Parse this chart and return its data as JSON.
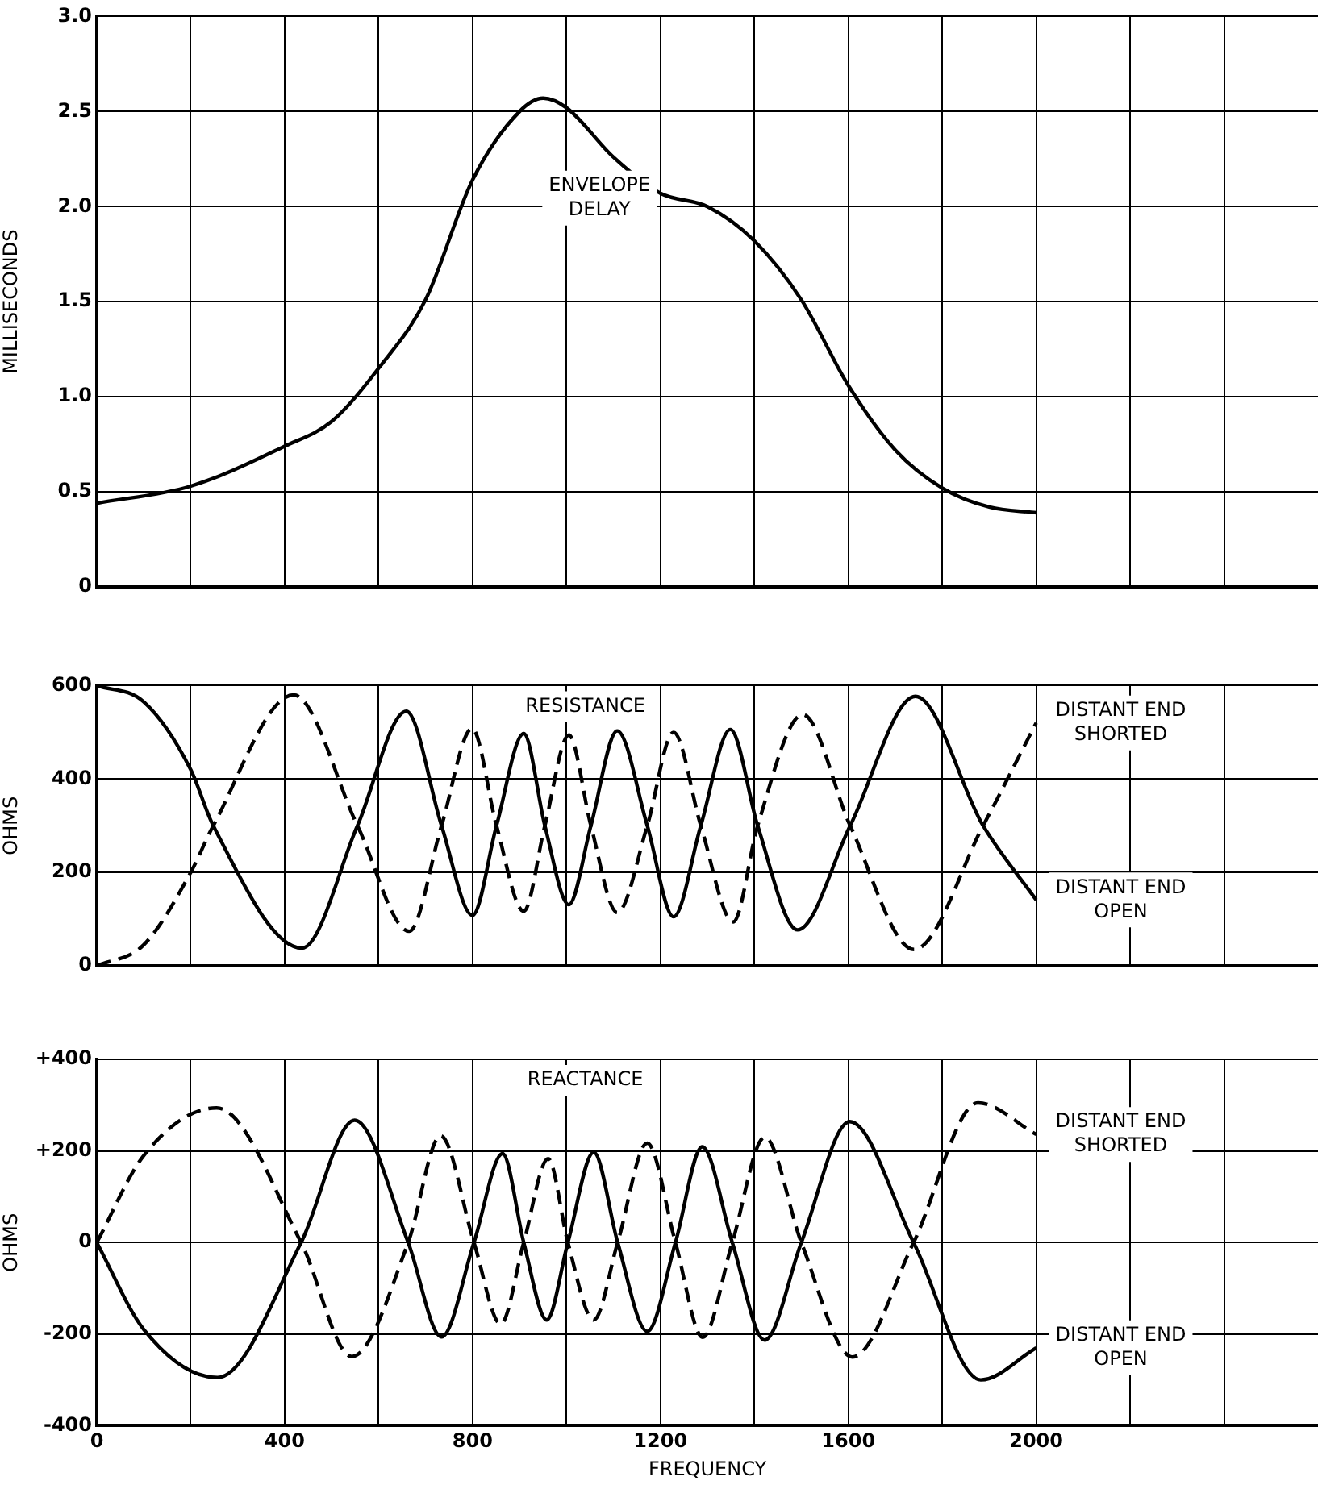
{
  "chart_data": [
    {
      "type": "line",
      "ylabel": "MILLISECONDS",
      "xlim": [
        0,
        2600
      ],
      "ylim": [
        0,
        3
      ],
      "xticks": [
        0,
        {
          "value": 200,
          "label": null
        },
        400,
        {
          "value": 600,
          "label": null
        },
        800,
        {
          "value": 1000,
          "label": null
        },
        1200,
        {
          "value": 1400,
          "label": null
        },
        1600,
        {
          "value": 1800,
          "label": null
        },
        2000,
        {
          "value": 2200,
          "label": null
        },
        {
          "value": 2400,
          "label": null
        }
      ],
      "yticks": [
        0,
        0.5,
        {
          "value": 1,
          "label": "1.0"
        },
        1.5,
        {
          "value": 2,
          "label": "2.0"
        },
        2.5,
        {
          "value": 3,
          "label": "3.0"
        }
      ],
      "grid": true,
      "tick_labels": "y",
      "marker": "none",
      "series": [
        {
          "name": "ENVELOPE DELAY",
          "color": "#000000",
          "line_style": "solid",
          "x": [
            0,
            200,
            400,
            500,
            600,
            700,
            800,
            900,
            950,
            1000,
            1100,
            1200,
            1300,
            1400,
            1500,
            1600,
            1700,
            1800,
            1900,
            2000
          ],
          "values": [
            0.44,
            0.53,
            0.74,
            0.87,
            1.15,
            1.51,
            2.14,
            2.5,
            2.57,
            2.52,
            2.26,
            2.07,
            2.0,
            1.82,
            1.51,
            1.06,
            0.72,
            0.52,
            0.42,
            0.39
          ]
        }
      ]
    },
    {
      "type": "line",
      "title": "RESISTANCE",
      "ylabel": "OHMS",
      "xlim": [
        0,
        2600
      ],
      "ylim": [
        0,
        600
      ],
      "xticks": [
        0,
        {
          "value": 200,
          "label": null
        },
        400,
        {
          "value": 600,
          "label": null
        },
        800,
        {
          "value": 1000,
          "label": null
        },
        1200,
        {
          "value": 1400,
          "label": null
        },
        1600,
        {
          "value": 1800,
          "label": null
        },
        2000,
        {
          "value": 2200,
          "label": null
        },
        {
          "value": 2400,
          "label": null
        }
      ],
      "yticks": [
        0,
        200,
        400,
        600
      ],
      "grid": true,
      "tick_labels": "y",
      "marker": "none",
      "series": [
        {
          "name": "DISTANT END SHORTED",
          "color": "#000000",
          "line_style": "dashed",
          "x": [
            0,
            100,
            200,
            248,
            419,
            555,
            665,
            734,
            799,
            851,
            909,
            954,
            1005,
            1052,
            1108,
            1172,
            1228,
            1286,
            1355,
            1407,
            1503,
            1604,
            1740,
            1887,
            2000
          ],
          "values": [
            0,
            45,
            200,
            300,
            580,
            300,
            74,
            300,
            508,
            300,
            117,
            300,
            494,
            300,
            114,
            300,
            500,
            300,
            94,
            300,
            538,
            300,
            35,
            300,
            520
          ]
        },
        {
          "name": "DISTANT END OPEN",
          "color": "#000000",
          "line_style": "solid",
          "x": [
            0,
            100,
            200,
            248,
            437,
            555,
            659,
            734,
            800,
            851,
            909,
            954,
            1005,
            1052,
            1108,
            1172,
            1228,
            1286,
            1349,
            1407,
            1492,
            1604,
            1743,
            1887,
            2000
          ],
          "values": [
            600,
            565,
            420,
            300,
            38,
            300,
            545,
            300,
            108,
            300,
            497,
            300,
            131,
            300,
            503,
            300,
            105,
            300,
            506,
            300,
            77,
            300,
            577,
            300,
            141
          ]
        }
      ]
    },
    {
      "type": "line",
      "title": "REACTANCE",
      "xlabel": "FREQUENCY",
      "ylabel": "OHMS",
      "xlim": [
        0,
        2600
      ],
      "ylim": [
        -400,
        400
      ],
      "xticks": [
        0,
        {
          "value": 200,
          "label": null
        },
        400,
        {
          "value": 600,
          "label": null
        },
        800,
        {
          "value": 1000,
          "label": null
        },
        1200,
        {
          "value": 1400,
          "label": null
        },
        1600,
        {
          "value": 1800,
          "label": null
        },
        2000,
        {
          "value": 2200,
          "label": null
        },
        {
          "value": 2400,
          "label": null
        }
      ],
      "yticks": [
        -400,
        -200,
        0,
        {
          "value": 200,
          "label": "+200"
        },
        {
          "value": 400,
          "label": "+400"
        }
      ],
      "grid": true,
      "marker": "none",
      "series": [
        {
          "name": "DISTANT END SHORTED",
          "color": "#000000",
          "line_style": "dashed",
          "x": [
            0,
            100,
            255,
            435,
            543,
            663,
            732,
            803,
            860,
            909,
            961,
            1003,
            1058,
            1109,
            1172,
            1232,
            1290,
            1353,
            1422,
            1500,
            1609,
            1739,
            1876,
            2000
          ],
          "values": [
            0,
            190,
            294,
            0,
            -249,
            0,
            233,
            0,
            -178,
            0,
            183,
            0,
            -169,
            0,
            217,
            0,
            -207,
            0,
            230,
            0,
            -250,
            0,
            305,
            236
          ]
        },
        {
          "name": "DISTANT END OPEN",
          "color": "#000000",
          "line_style": "solid",
          "x": [
            0,
            100,
            257,
            435,
            549,
            663,
            734,
            803,
            864,
            909,
            958,
            1003,
            1058,
            1109,
            1172,
            1232,
            1289,
            1353,
            1422,
            1500,
            1603,
            1739,
            1882,
            2000
          ],
          "values": [
            0,
            -190,
            -295,
            0,
            267,
            0,
            -206,
            0,
            194,
            0,
            -169,
            0,
            197,
            0,
            -194,
            0,
            209,
            0,
            -213,
            0,
            264,
            0,
            -300,
            -230
          ]
        }
      ]
    }
  ]
}
